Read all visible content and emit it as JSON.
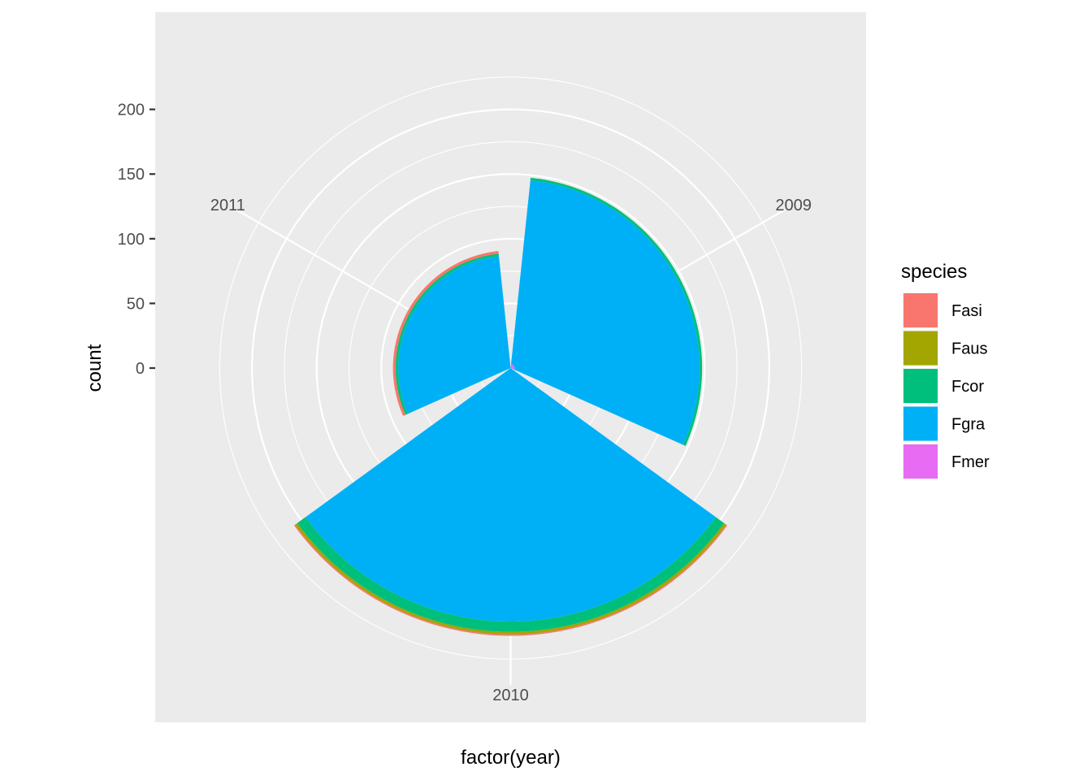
{
  "chart_data": {
    "type": "bar",
    "coord": "polar",
    "position": "stack",
    "categories": [
      "2009",
      "2010",
      "2011"
    ],
    "series": [
      {
        "name": "Fasi",
        "values": [
          0,
          1,
          2
        ]
      },
      {
        "name": "Faus",
        "values": [
          0,
          2,
          0
        ]
      },
      {
        "name": "Fcor",
        "values": [
          2,
          8,
          2
        ]
      },
      {
        "name": "Fgra",
        "values": [
          143,
          196,
          87
        ]
      },
      {
        "name": "Fmer",
        "values": [
          3,
          0,
          0
        ]
      }
    ],
    "xlabel": "factor(year)",
    "ylabel": "count",
    "ylim": [
      0,
      245
    ],
    "y_ticks": [
      "0",
      "50",
      "100",
      "150",
      "200"
    ],
    "y_tick_values": [
      0,
      50,
      100,
      150,
      200
    ],
    "grid": true,
    "legend": {
      "title": "species",
      "position": "right",
      "items": [
        "Fasi",
        "Faus",
        "Fcor",
        "Fgra",
        "Fmer"
      ],
      "colors": [
        "#F8766D",
        "#A3A500",
        "#00BF7D",
        "#00B0F6",
        "#E76BF3"
      ]
    },
    "panel_background": "#EBEBEB",
    "gridline_color": "#FFFFFF"
  }
}
